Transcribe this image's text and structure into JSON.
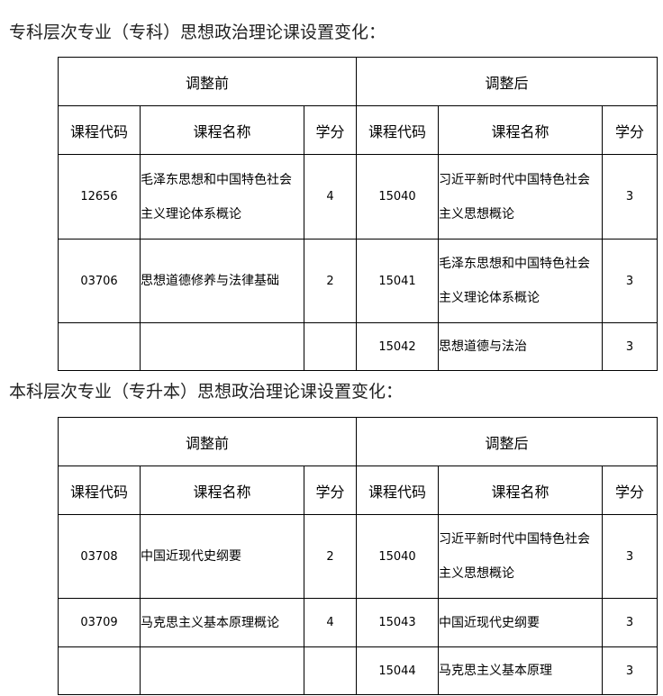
{
  "sections": [
    {
      "title": "专科层次专业（专科）思想政治理论课设置变化：",
      "before_label": "调整前",
      "after_label": "调整后",
      "headers": [
        "课程代码",
        "课程名称",
        "学分",
        "课程代码",
        "课程名称",
        "学分"
      ],
      "rows": [
        [
          "12656",
          "毛泽东思想和中国特色社会主义理论体系概论",
          "4",
          "15040",
          "习近平新时代中国特色社会主义思想概论",
          "3"
        ],
        [
          "03706",
          "思想道德修养与法律基础",
          "2",
          "15041",
          "毛泽东思想和中国特色社会主义理论体系概论",
          "3"
        ],
        [
          "",
          "",
          "",
          "15042",
          "思想道德与法治",
          "3"
        ]
      ]
    },
    {
      "title": "本科层次专业（专升本）思想政治理论课设置变化：",
      "before_label": "调整前",
      "after_label": "调整后",
      "headers": [
        "课程代码",
        "课程名称",
        "学分",
        "课程代码",
        "课程名称",
        "学分"
      ],
      "rows": [
        [
          "03708",
          "中国近现代史纲要",
          "2",
          "15040",
          "习近平新时代中国特色社会主义思想概论",
          "3"
        ],
        [
          "03709",
          "马克思主义基本原理概论",
          "4",
          "15043",
          "中国近现代史纲要",
          "3"
        ],
        [
          "",
          "",
          "",
          "15044",
          "马克思主义基本原理",
          "3"
        ]
      ]
    }
  ]
}
